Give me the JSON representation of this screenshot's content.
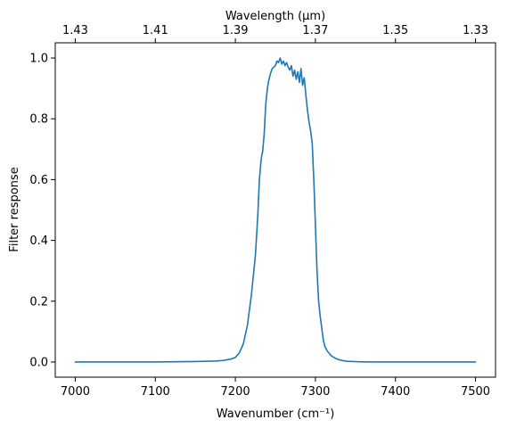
{
  "chart_data": {
    "type": "line",
    "xlabel": "Wavenumber (cm⁻¹)",
    "ylabel": "Filter response",
    "top_axis_label": "Wavelength (μm)",
    "xlim": [
      6975,
      7525
    ],
    "ylim": [
      -0.05,
      1.05
    ],
    "x_ticks": [
      "7000",
      "7100",
      "7200",
      "7300",
      "7400",
      "7500"
    ],
    "y_ticks": [
      "0.0",
      "0.2",
      "0.4",
      "0.6",
      "0.8",
      "1.0"
    ],
    "top_ticks": [
      {
        "label": "1.43",
        "wavenumber": 7000
      },
      {
        "label": "1.41",
        "wavenumber": 7100
      },
      {
        "label": "1.39",
        "wavenumber": 7200
      },
      {
        "label": "1.37",
        "wavenumber": 7300
      },
      {
        "label": "1.35",
        "wavenumber": 7400
      },
      {
        "label": "1.33",
        "wavenumber": 7500
      }
    ],
    "grid": false,
    "series": [
      {
        "color": "#1f77b4",
        "x": [
          7000,
          7050,
          7100,
          7150,
          7175,
          7185,
          7195,
          7200,
          7205,
          7210,
          7215,
          7220,
          7225,
          7228,
          7230,
          7232,
          7233,
          7234,
          7236,
          7238,
          7240,
          7242,
          7244,
          7246,
          7248,
          7250,
          7252,
          7254,
          7256,
          7258,
          7260,
          7262,
          7264,
          7266,
          7268,
          7270,
          7272,
          7274,
          7276,
          7278,
          7280,
          7282,
          7284,
          7286,
          7288,
          7290,
          7292,
          7294,
          7296,
          7298,
          7300,
          7302,
          7304,
          7306,
          7308,
          7310,
          7312,
          7315,
          7320,
          7325,
          7330,
          7335,
          7340,
          7345,
          7350,
          7360,
          7375,
          7400,
          7450,
          7500
        ],
        "y": [
          0.0,
          0.0,
          0.0,
          0.0015,
          0.003,
          0.005,
          0.01,
          0.015,
          0.03,
          0.06,
          0.12,
          0.22,
          0.35,
          0.48,
          0.6,
          0.66,
          0.68,
          0.69,
          0.75,
          0.85,
          0.9,
          0.93,
          0.95,
          0.965,
          0.97,
          0.975,
          0.99,
          0.985,
          1.0,
          0.98,
          0.99,
          0.975,
          0.985,
          0.97,
          0.96,
          0.975,
          0.94,
          0.96,
          0.93,
          0.955,
          0.92,
          0.965,
          0.91,
          0.935,
          0.88,
          0.83,
          0.79,
          0.76,
          0.72,
          0.6,
          0.45,
          0.3,
          0.2,
          0.15,
          0.11,
          0.07,
          0.05,
          0.035,
          0.02,
          0.012,
          0.007,
          0.004,
          0.002,
          0.002,
          0.001,
          0.0005,
          0.0,
          0.0,
          0.0,
          0.0
        ]
      }
    ]
  }
}
